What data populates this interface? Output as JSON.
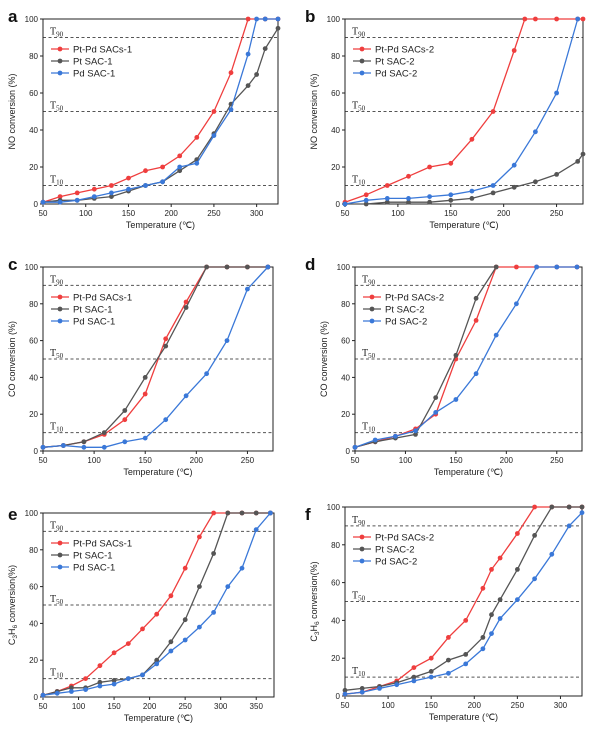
{
  "chart_data": [
    {
      "panel": "a",
      "type": "line",
      "xlabel": "Temperature (℃)",
      "ylabel": "NO conversion (%)",
      "xlim": [
        50,
        325
      ],
      "ylim": [
        0,
        100
      ],
      "xticks": [
        50,
        100,
        150,
        200,
        250,
        300
      ],
      "yticks": [
        0,
        20,
        40,
        60,
        80,
        100
      ],
      "ref_lines": [
        {
          "y": 90,
          "label": "T",
          "sub": "90"
        },
        {
          "y": 50,
          "label": "T",
          "sub": "50"
        },
        {
          "y": 10,
          "label": "T",
          "sub": "10"
        }
      ],
      "legend": "top-left",
      "series": [
        {
          "name": "Pt-Pd SACs-1",
          "color": "#ef3e3e",
          "x": [
            50,
            70,
            90,
            110,
            130,
            150,
            170,
            190,
            210,
            230,
            250,
            270,
            290,
            310,
            325
          ],
          "y": [
            1,
            4,
            6,
            8,
            10,
            14,
            18,
            20,
            26,
            36,
            50,
            71,
            100,
            100,
            100
          ]
        },
        {
          "name": "Pt SAC-1",
          "color": "#555555",
          "x": [
            50,
            70,
            90,
            110,
            130,
            150,
            170,
            190,
            210,
            230,
            250,
            270,
            290,
            300,
            310,
            325
          ],
          "y": [
            1,
            2,
            2,
            3,
            4,
            7,
            10,
            12,
            18,
            24,
            38,
            54,
            64,
            70,
            84,
            95
          ]
        },
        {
          "name": "Pd SAC-1",
          "color": "#3a78d8",
          "x": [
            50,
            70,
            90,
            110,
            130,
            150,
            170,
            190,
            210,
            230,
            250,
            270,
            290,
            300,
            310,
            325
          ],
          "y": [
            1,
            1,
            2,
            4,
            6,
            8,
            10,
            12,
            20,
            22,
            37,
            51,
            81,
            100,
            100,
            100
          ]
        }
      ]
    },
    {
      "panel": "b",
      "type": "line",
      "xlabel": "Temperature (℃)",
      "ylabel": "NO conversion (%)",
      "xlim": [
        50,
        275
      ],
      "ylim": [
        0,
        100
      ],
      "xticks": [
        50,
        100,
        150,
        200,
        250
      ],
      "yticks": [
        0,
        20,
        40,
        60,
        80,
        100
      ],
      "ref_lines": [
        {
          "y": 90,
          "label": "T",
          "sub": "90"
        },
        {
          "y": 50,
          "label": "T",
          "sub": "50"
        },
        {
          "y": 10,
          "label": "T",
          "sub": "10"
        }
      ],
      "legend": "top-left",
      "series": [
        {
          "name": "Pt-Pd SACs-2",
          "color": "#ef3e3e",
          "x": [
            50,
            70,
            90,
            110,
            130,
            150,
            170,
            190,
            210,
            220,
            230,
            250,
            270,
            275
          ],
          "y": [
            1,
            5,
            10,
            15,
            20,
            22,
            35,
            50,
            83,
            100,
            100,
            100,
            100,
            100
          ]
        },
        {
          "name": "Pt SAC-2",
          "color": "#555555",
          "x": [
            50,
            70,
            90,
            110,
            130,
            150,
            170,
            190,
            210,
            230,
            250,
            270,
            275
          ],
          "y": [
            0,
            0,
            1,
            1,
            1,
            2,
            3,
            6,
            9,
            12,
            16,
            23,
            27
          ]
        },
        {
          "name": "Pd SAC-2",
          "color": "#3a78d8",
          "x": [
            50,
            70,
            90,
            110,
            130,
            150,
            170,
            190,
            210,
            230,
            250,
            270
          ],
          "y": [
            0,
            2,
            3,
            3,
            4,
            5,
            7,
            10,
            21,
            39,
            60,
            100
          ]
        }
      ]
    },
    {
      "panel": "c",
      "type": "line",
      "xlabel": "Temperature (℃)",
      "ylabel": "CO conversion (%)",
      "xlim": [
        50,
        275
      ],
      "ylim": [
        0,
        100
      ],
      "xticks": [
        50,
        100,
        150,
        200,
        250
      ],
      "yticks": [
        0,
        20,
        40,
        60,
        80,
        100
      ],
      "ref_lines": [
        {
          "y": 90,
          "label": "T",
          "sub": "90"
        },
        {
          "y": 50,
          "label": "T",
          "sub": "50"
        },
        {
          "y": 10,
          "label": "T",
          "sub": "10"
        }
      ],
      "legend": "top-left",
      "series": [
        {
          "name": "Pt-Pd SACs-1",
          "color": "#ef3e3e",
          "x": [
            50,
            70,
            90,
            110,
            130,
            150,
            170,
            190,
            210,
            230,
            250,
            270
          ],
          "y": [
            2,
            3,
            5,
            9,
            17,
            31,
            61,
            81,
            100,
            100,
            100,
            100
          ]
        },
        {
          "name": "Pt SAC-1",
          "color": "#555555",
          "x": [
            50,
            70,
            90,
            110,
            130,
            150,
            170,
            190,
            210,
            230,
            250,
            270
          ],
          "y": [
            2,
            3,
            5,
            10,
            22,
            40,
            57,
            78,
            100,
            100,
            100,
            100
          ]
        },
        {
          "name": "Pd SAC-1",
          "color": "#3a78d8",
          "x": [
            50,
            70,
            90,
            110,
            130,
            150,
            170,
            190,
            210,
            230,
            250,
            270
          ],
          "y": [
            2,
            3,
            2,
            2,
            5,
            7,
            17,
            30,
            42,
            60,
            88,
            100
          ]
        }
      ]
    },
    {
      "panel": "d",
      "type": "line",
      "xlabel": "Temperature (℃)",
      "ylabel": "CO conversion (%)",
      "xlim": [
        50,
        275
      ],
      "ylim": [
        0,
        100
      ],
      "xticks": [
        50,
        100,
        150,
        200,
        250
      ],
      "yticks": [
        0,
        20,
        40,
        60,
        80,
        100
      ],
      "ref_lines": [
        {
          "y": 90,
          "label": "T",
          "sub": "90"
        },
        {
          "y": 50,
          "label": "T",
          "sub": "50"
        },
        {
          "y": 10,
          "label": "T",
          "sub": "10"
        }
      ],
      "legend": "top-left",
      "series": [
        {
          "name": "Pt-Pd SACs-2",
          "color": "#ef3e3e",
          "x": [
            50,
            70,
            90,
            110,
            130,
            150,
            170,
            190,
            210,
            230,
            250,
            270
          ],
          "y": [
            2,
            5,
            8,
            12,
            20,
            50,
            71,
            100,
            100,
            100,
            100,
            100
          ]
        },
        {
          "name": "Pt SAC-2",
          "color": "#555555",
          "x": [
            50,
            70,
            90,
            110,
            130,
            150,
            170,
            190
          ],
          "y": [
            2,
            5,
            7,
            9,
            29,
            52,
            83,
            100
          ]
        },
        {
          "name": "Pd SAC-2",
          "color": "#3a78d8",
          "x": [
            50,
            70,
            90,
            110,
            130,
            150,
            170,
            190,
            210,
            230,
            250,
            270
          ],
          "y": [
            2,
            6,
            8,
            11,
            21,
            28,
            42,
            63,
            80,
            100,
            100,
            100
          ]
        }
      ]
    },
    {
      "panel": "e",
      "type": "line",
      "xlabel": "Temperature (℃)",
      "ylabel": "C",
      "ylabel_parts": [
        "C",
        "3",
        "H",
        "6",
        " conversion(%)"
      ],
      "xlim": [
        50,
        375
      ],
      "ylim": [
        0,
        100
      ],
      "xticks": [
        50,
        100,
        150,
        200,
        250,
        300,
        350
      ],
      "yticks": [
        0,
        20,
        40,
        60,
        80,
        100
      ],
      "ref_lines": [
        {
          "y": 90,
          "label": "T",
          "sub": "90"
        },
        {
          "y": 50,
          "label": "T",
          "sub": "50"
        },
        {
          "y": 10,
          "label": "T",
          "sub": "10"
        }
      ],
      "legend": "top-left",
      "series": [
        {
          "name": "Pt-Pd SACs-1",
          "color": "#ef3e3e",
          "x": [
            50,
            70,
            90,
            110,
            130,
            150,
            170,
            190,
            210,
            230,
            250,
            270,
            290,
            310,
            330,
            350,
            370
          ],
          "y": [
            1,
            3,
            6,
            10,
            17,
            24,
            29,
            37,
            45,
            55,
            70,
            87,
            100,
            100,
            100,
            100,
            100
          ]
        },
        {
          "name": "Pt SAC-1",
          "color": "#555555",
          "x": [
            50,
            70,
            90,
            110,
            130,
            150,
            170,
            190,
            210,
            230,
            250,
            270,
            290,
            310,
            330,
            350,
            370
          ],
          "y": [
            1,
            3,
            5,
            5,
            8,
            9,
            10,
            12,
            20,
            30,
            42,
            60,
            78,
            100,
            100,
            100,
            100
          ]
        },
        {
          "name": "Pd SAC-1",
          "color": "#3a78d8",
          "x": [
            50,
            70,
            90,
            110,
            130,
            150,
            170,
            190,
            210,
            230,
            250,
            270,
            290,
            310,
            330,
            350,
            370
          ],
          "y": [
            1,
            2,
            3,
            4,
            6,
            7,
            10,
            12,
            18,
            25,
            31,
            38,
            46,
            60,
            70,
            91,
            100
          ]
        }
      ]
    },
    {
      "panel": "f",
      "type": "line",
      "xlabel": "Temperature (℃)",
      "ylabel": "C",
      "ylabel_parts": [
        "C",
        "3",
        "H",
        "6",
        " conversion(%)"
      ],
      "xlim": [
        50,
        325
      ],
      "ylim": [
        0,
        100
      ],
      "xticks": [
        50,
        100,
        150,
        200,
        250,
        300
      ],
      "yticks": [
        0,
        20,
        40,
        60,
        80,
        100
      ],
      "ref_lines": [
        {
          "y": 90,
          "label": "T",
          "sub": "90"
        },
        {
          "y": 50,
          "label": "T",
          "sub": "50"
        },
        {
          "y": 10,
          "label": "T",
          "sub": "10"
        }
      ],
      "legend": "top-left",
      "series": [
        {
          "name": "Pt-Pd SACs-2",
          "color": "#ef3e3e",
          "x": [
            50,
            70,
            90,
            110,
            130,
            150,
            170,
            190,
            210,
            220,
            230,
            250,
            270,
            290,
            310,
            325
          ],
          "y": [
            1,
            2,
            5,
            8,
            15,
            20,
            31,
            40,
            57,
            67,
            73,
            86,
            100,
            100,
            100,
            100
          ]
        },
        {
          "name": "Pt SAC-2",
          "color": "#555555",
          "x": [
            50,
            70,
            90,
            110,
            130,
            150,
            170,
            190,
            210,
            220,
            230,
            250,
            270,
            290,
            310,
            325
          ],
          "y": [
            3,
            4,
            5,
            7,
            10,
            13,
            19,
            22,
            31,
            43,
            51,
            67,
            85,
            100,
            100,
            100
          ]
        },
        {
          "name": "Pd SAC-2",
          "color": "#3a78d8",
          "x": [
            50,
            70,
            90,
            110,
            130,
            150,
            170,
            190,
            210,
            220,
            230,
            250,
            270,
            290,
            310,
            325
          ],
          "y": [
            1,
            2,
            4,
            6,
            8,
            10,
            12,
            17,
            25,
            33,
            41,
            51,
            62,
            75,
            90,
            97
          ]
        }
      ]
    }
  ]
}
